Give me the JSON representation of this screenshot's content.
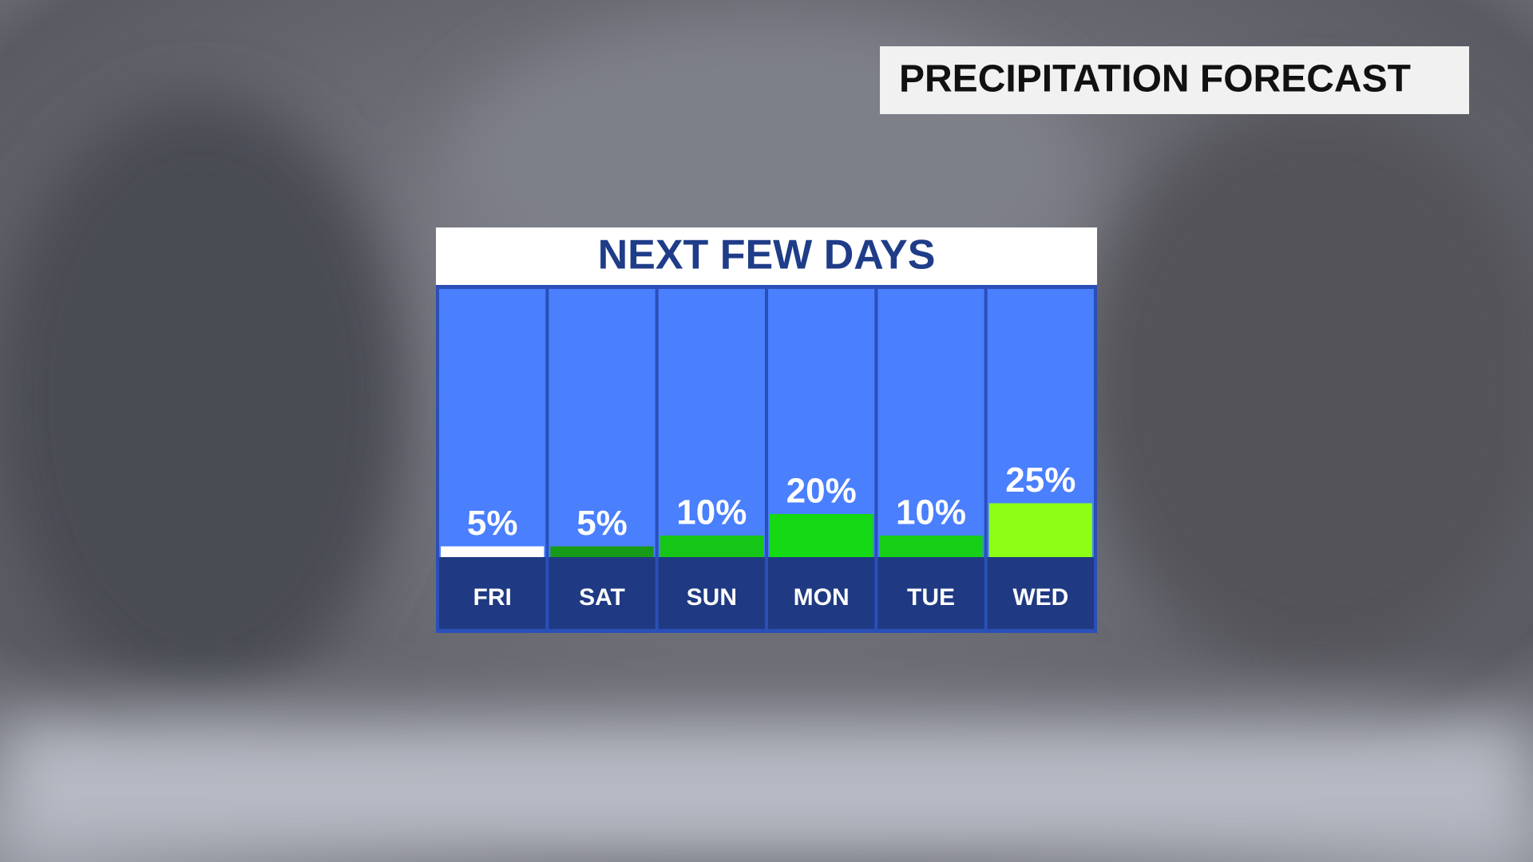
{
  "header": {
    "title": "PRECIPITATION FORECAST"
  },
  "chart_data": {
    "type": "bar",
    "title": "NEXT FEW DAYS",
    "categories": [
      "FRI",
      "SAT",
      "SUN",
      "MON",
      "TUE",
      "WED"
    ],
    "values": [
      5,
      5,
      10,
      20,
      10,
      25
    ],
    "value_labels": [
      "5%",
      "5%",
      "10%",
      "20%",
      "10%",
      "25%"
    ],
    "colors": [
      "#ffffff",
      "#179a17",
      "#16c616",
      "#14d914",
      "#16cf16",
      "#8cff14"
    ]
  }
}
